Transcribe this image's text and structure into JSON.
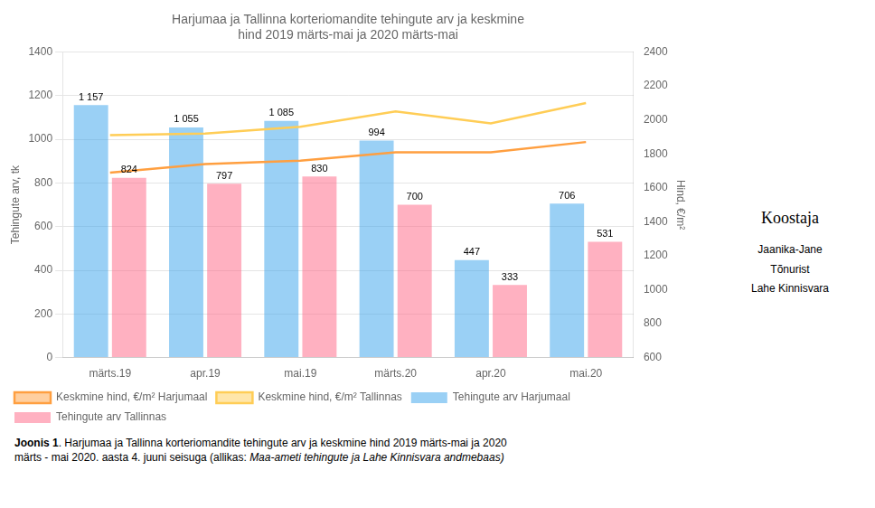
{
  "chart_data": {
    "type": "bar",
    "title": "Harjumaa ja Tallinna korteriomandite tehingute arv ja keskmine\nhind 2019 märts-mai ja 2020 märts-mai",
    "categories": [
      "märts.19",
      "apr.19",
      "mai.19",
      "märts.20",
      "apr.20",
      "mai.20"
    ],
    "ylabel": "Tehingute arv, tk",
    "y2label": "Hind, €/m²",
    "ylim": [
      0,
      1400
    ],
    "yticks": [
      0,
      200,
      400,
      600,
      800,
      1000,
      1200,
      1400
    ],
    "y2lim": [
      600,
      2400
    ],
    "y2ticks": [
      600,
      800,
      1000,
      1200,
      1400,
      1600,
      1800,
      2000,
      2200,
      2400
    ],
    "grid": "y",
    "legend": "lower left",
    "series": [
      {
        "name": "Tehingute arv Harjumaal",
        "type": "bar",
        "data_labels": true,
        "values": [
          1157,
          1055,
          1085,
          994,
          447,
          706
        ],
        "value_labels": [
          "1 157",
          "1 055",
          "1 085",
          "994",
          "447",
          "706"
        ]
      },
      {
        "name": "Tehingute arv Tallinnas",
        "type": "bar",
        "data_labels": true,
        "values": [
          824,
          797,
          830,
          700,
          333,
          531
        ]
      },
      {
        "name": "Keskmine hind, €/m² Harjumaal",
        "type": "line",
        "axis": "y2",
        "marker": "none",
        "values": [
          1690,
          1740,
          1760,
          1810,
          1810,
          1870
        ]
      },
      {
        "name": "Keskmine hind, €/m² Tallinnas",
        "type": "line",
        "axis": "y2",
        "marker": "none",
        "values": [
          1910,
          1920,
          1960,
          2050,
          1980,
          2100
        ]
      }
    ],
    "annotations": [
      "Joonis 1",
      ". Harjumaa ja Tallinna korteriomandite tehingute arv ja keskmine hind 2019 märts-mai ja 2020\nmärts - mai 2020. aasta 4. juuni seisuga (allikas: ",
      "Maa-ameti tehingute ja Lahe Kinnisvara andmebaas)",
      "Koostaja",
      "Jaanika-Jane\nTõnurist\nLahe Kinnisvara"
    ]
  }
}
